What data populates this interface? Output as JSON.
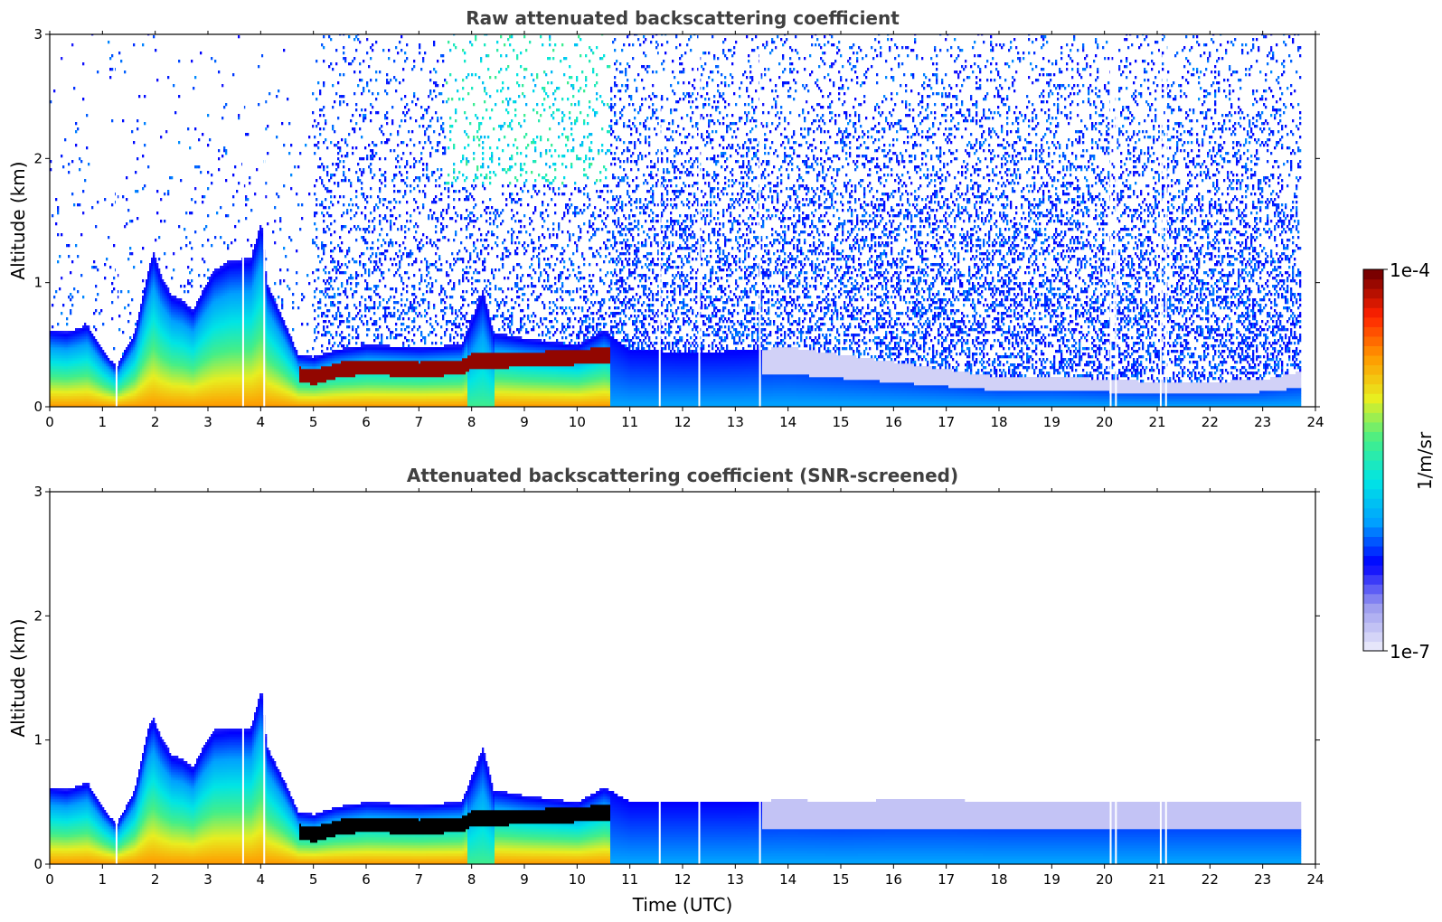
{
  "chart_data": [
    {
      "type": "heatmap",
      "title": "Raw attenuated backscattering coefficient",
      "xlabel": "",
      "ylabel": "Altitude (km)",
      "xlim": [
        0,
        24
      ],
      "ylim": [
        0,
        3
      ],
      "x_ticks": [
        "0",
        "1",
        "2",
        "3",
        "4",
        "5",
        "6",
        "7",
        "8",
        "9",
        "10",
        "11",
        "12",
        "13",
        "14",
        "15",
        "16",
        "17",
        "18",
        "19",
        "20",
        "21",
        "22",
        "23",
        "24"
      ],
      "y_ticks": [
        "0",
        "1",
        "2",
        "3"
      ],
      "screened": false,
      "data_end_hour": 23.7,
      "layer_top_km": [
        [
          0,
          0.62
        ],
        [
          0.3,
          0.6
        ],
        [
          0.7,
          0.66
        ],
        [
          1.0,
          0.45
        ],
        [
          1.25,
          0.32
        ],
        [
          1.6,
          0.6
        ],
        [
          1.85,
          1.1
        ],
        [
          1.95,
          1.25
        ],
        [
          2.1,
          1.05
        ],
        [
          2.3,
          0.9
        ],
        [
          2.5,
          0.86
        ],
        [
          2.7,
          0.78
        ],
        [
          2.9,
          0.95
        ],
        [
          3.1,
          1.1
        ],
        [
          3.4,
          1.18
        ],
        [
          3.8,
          1.2
        ],
        [
          4.0,
          1.5
        ],
        [
          4.1,
          1.0
        ],
        [
          4.4,
          0.72
        ],
        [
          4.7,
          0.42
        ],
        [
          5.0,
          0.4
        ],
        [
          5.4,
          0.46
        ],
        [
          6.0,
          0.5
        ],
        [
          7.0,
          0.48
        ],
        [
          7.8,
          0.5
        ],
        [
          8.2,
          0.95
        ],
        [
          8.4,
          0.6
        ],
        [
          9.0,
          0.55
        ],
        [
          10.0,
          0.5
        ],
        [
          10.5,
          0.62
        ],
        [
          11.0,
          0.46
        ],
        [
          12.0,
          0.44
        ],
        [
          13.0,
          0.45
        ],
        [
          14.0,
          0.48
        ],
        [
          15.0,
          0.42
        ],
        [
          16.0,
          0.36
        ],
        [
          17.0,
          0.3
        ],
        [
          18.0,
          0.24
        ],
        [
          19.0,
          0.25
        ],
        [
          20.0,
          0.22
        ],
        [
          21.0,
          0.2
        ],
        [
          22.0,
          0.2
        ],
        [
          23.0,
          0.22
        ],
        [
          23.7,
          0.28
        ]
      ],
      "dense_layer_km": [
        [
          4.7,
          0.26
        ],
        [
          5.0,
          0.24
        ],
        [
          5.5,
          0.3
        ],
        [
          6.0,
          0.32
        ],
        [
          7.0,
          0.3
        ],
        [
          7.8,
          0.32
        ],
        [
          8.0,
          0.37
        ],
        [
          9.0,
          0.38
        ],
        [
          10.0,
          0.4
        ],
        [
          10.5,
          0.42
        ]
      ]
    },
    {
      "type": "heatmap",
      "title": "Attenuated backscattering coefficient (SNR-screened)",
      "xlabel": "Time (UTC)",
      "ylabel": "Altitude (km)",
      "xlim": [
        0,
        24
      ],
      "ylim": [
        0,
        3
      ],
      "x_ticks": [
        "0",
        "1",
        "2",
        "3",
        "4",
        "5",
        "6",
        "7",
        "8",
        "9",
        "10",
        "11",
        "12",
        "13",
        "14",
        "15",
        "16",
        "17",
        "18",
        "19",
        "20",
        "21",
        "22",
        "23",
        "24"
      ],
      "y_ticks": [
        "0",
        "1",
        "2",
        "3"
      ],
      "screened": true,
      "data_end_hour": 23.7,
      "layer_top_km": [
        [
          0,
          0.62
        ],
        [
          0.3,
          0.6
        ],
        [
          0.7,
          0.66
        ],
        [
          1.0,
          0.45
        ],
        [
          1.25,
          0.32
        ],
        [
          1.6,
          0.6
        ],
        [
          1.85,
          1.1
        ],
        [
          1.95,
          1.18
        ],
        [
          2.1,
          1.02
        ],
        [
          2.3,
          0.88
        ],
        [
          2.5,
          0.85
        ],
        [
          2.7,
          0.78
        ],
        [
          2.9,
          0.95
        ],
        [
          3.1,
          1.08
        ],
        [
          3.4,
          1.1
        ],
        [
          3.8,
          1.1
        ],
        [
          4.0,
          1.42
        ],
        [
          4.1,
          0.95
        ],
        [
          4.4,
          0.7
        ],
        [
          4.7,
          0.42
        ],
        [
          5.0,
          0.4
        ],
        [
          5.4,
          0.46
        ],
        [
          6.0,
          0.5
        ],
        [
          7.0,
          0.48
        ],
        [
          7.8,
          0.5
        ],
        [
          8.2,
          0.95
        ],
        [
          8.4,
          0.6
        ],
        [
          9.0,
          0.55
        ],
        [
          10.0,
          0.5
        ],
        [
          10.5,
          0.62
        ],
        [
          11.0,
          0.5
        ],
        [
          12.0,
          0.5
        ],
        [
          13.0,
          0.5
        ],
        [
          14.0,
          0.52
        ],
        [
          15.0,
          0.5
        ],
        [
          16.0,
          0.52
        ],
        [
          17.0,
          0.52
        ],
        [
          18.0,
          0.5
        ],
        [
          19.0,
          0.5
        ],
        [
          20.0,
          0.5
        ],
        [
          21.0,
          0.5
        ],
        [
          22.0,
          0.5
        ],
        [
          23.0,
          0.5
        ],
        [
          23.7,
          0.5
        ]
      ],
      "dense_layer_km": [
        [
          4.7,
          0.26
        ],
        [
          5.0,
          0.24
        ],
        [
          5.5,
          0.3
        ],
        [
          6.0,
          0.32
        ],
        [
          7.0,
          0.3
        ],
        [
          7.8,
          0.32
        ],
        [
          8.0,
          0.37
        ],
        [
          9.0,
          0.38
        ],
        [
          10.0,
          0.4
        ],
        [
          10.5,
          0.42
        ]
      ]
    }
  ],
  "colorbar": {
    "label": "1/m/sr",
    "max_label": "1e-4",
    "min_label": "1e-7",
    "colors": [
      "#e6e6fa",
      "#9999ee",
      "#0000ff",
      "#00a0ff",
      "#00e5e5",
      "#44ee88",
      "#e8ee20",
      "#ff9900",
      "#ff2200",
      "#7a0000"
    ]
  }
}
